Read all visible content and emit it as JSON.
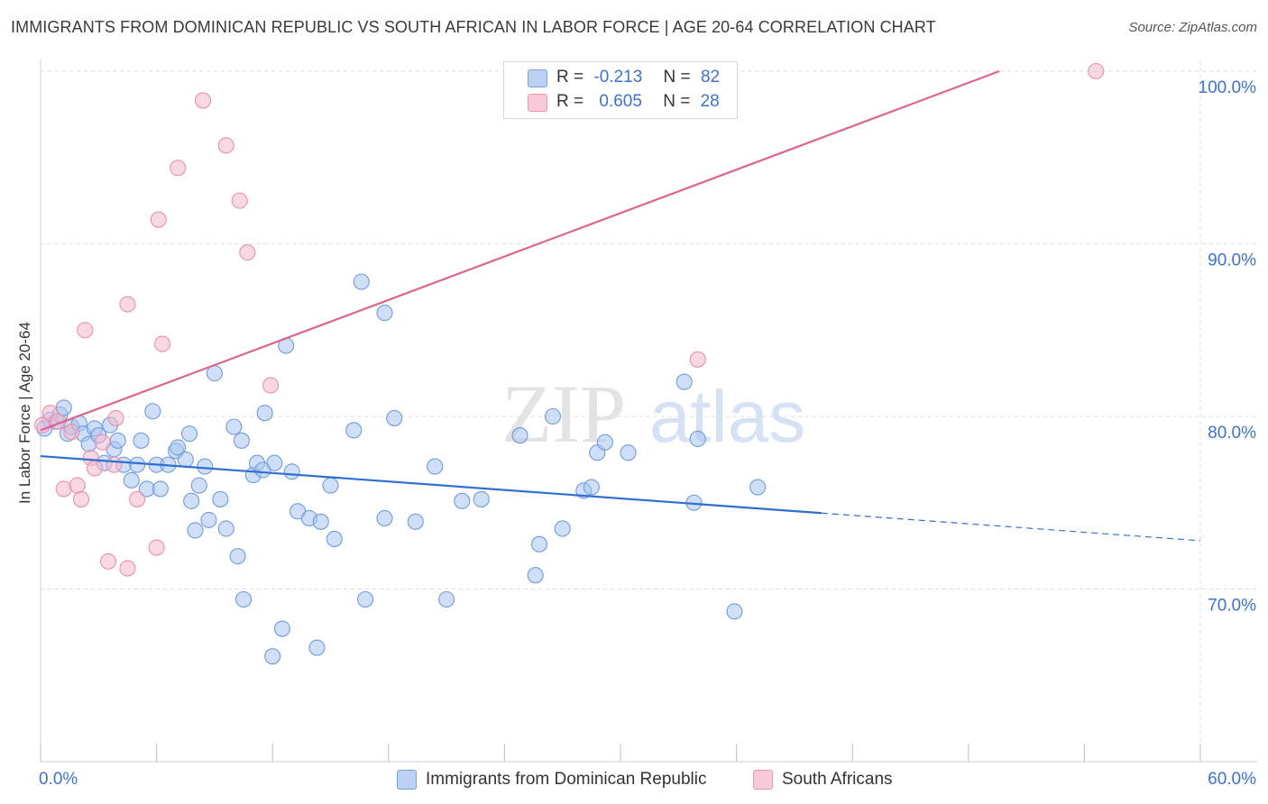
{
  "title": "IMMIGRANTS FROM DOMINICAN REPUBLIC VS SOUTH AFRICAN IN LABOR FORCE | AGE 20-64 CORRELATION CHART",
  "source": "Source: ZipAtlas.com",
  "watermark": {
    "zip": "ZIP",
    "atlas": "atlas"
  },
  "legend_top": {
    "rows": [
      {
        "r_label": "R =",
        "r_value": "-0.213",
        "n_label": "N =",
        "n_value": "82"
      },
      {
        "r_label": "R =",
        "r_value": "0.605",
        "n_label": "N =",
        "n_value": "28"
      }
    ]
  },
  "colors": {
    "blue_fill": "#a8c4f0",
    "blue_stroke": "#6f9be0",
    "blue_line": "#2f6fd0",
    "pink_fill": "#f5b8cb",
    "pink_stroke": "#ea8fae",
    "pink_line": "#e0628f",
    "grid": "#dddddd",
    "tick_text": "#3b72d9"
  },
  "chart_data": {
    "type": "scatter",
    "title": "IMMIGRANTS FROM DOMINICAN REPUBLIC VS SOUTH AFRICAN IN LABOR FORCE | AGE 20-64 CORRELATION CHART",
    "xlabel": "",
    "ylabel": "In Labor Force | Age 20-64",
    "xlim": [
      0,
      60
    ],
    "ylim": [
      60,
      100
    ],
    "x_tick_labels": [
      "0.0%",
      "60.0%"
    ],
    "y_ticks": [
      70,
      80,
      90,
      100
    ],
    "y_tick_labels": [
      "70.0%",
      "80.0%",
      "90.0%",
      "100.0%"
    ],
    "grid": true,
    "legend_position": "bottom",
    "series": [
      {
        "name": "Immigrants from Dominican Republic",
        "color": "#a8c4f0",
        "points": [
          [
            0.2,
            79.3
          ],
          [
            0.5,
            79.8
          ],
          [
            0.8,
            79.7
          ],
          [
            1.0,
            80.1
          ],
          [
            1.2,
            80.5
          ],
          [
            1.4,
            79.0
          ],
          [
            1.6,
            79.4
          ],
          [
            2.0,
            79.6
          ],
          [
            2.2,
            79.0
          ],
          [
            2.5,
            78.4
          ],
          [
            2.8,
            79.3
          ],
          [
            3.0,
            78.9
          ],
          [
            3.3,
            77.3
          ],
          [
            3.6,
            79.5
          ],
          [
            3.8,
            78.1
          ],
          [
            4.0,
            78.6
          ],
          [
            4.3,
            77.2
          ],
          [
            4.7,
            76.3
          ],
          [
            5.0,
            77.2
          ],
          [
            5.2,
            78.6
          ],
          [
            5.5,
            75.8
          ],
          [
            5.8,
            80.3
          ],
          [
            6.0,
            77.2
          ],
          [
            6.2,
            75.8
          ],
          [
            6.6,
            77.2
          ],
          [
            7.0,
            78.0
          ],
          [
            7.1,
            78.2
          ],
          [
            7.5,
            77.5
          ],
          [
            7.7,
            79.0
          ],
          [
            7.8,
            75.1
          ],
          [
            8.0,
            73.4
          ],
          [
            8.2,
            76.0
          ],
          [
            8.5,
            77.1
          ],
          [
            8.7,
            74.0
          ],
          [
            9.0,
            82.5
          ],
          [
            9.3,
            75.2
          ],
          [
            9.6,
            73.5
          ],
          [
            10.0,
            79.4
          ],
          [
            10.2,
            71.9
          ],
          [
            10.4,
            78.6
          ],
          [
            10.5,
            69.4
          ],
          [
            11.0,
            76.6
          ],
          [
            11.2,
            77.3
          ],
          [
            11.5,
            76.9
          ],
          [
            11.6,
            80.2
          ],
          [
            12.0,
            66.1
          ],
          [
            12.1,
            77.3
          ],
          [
            12.5,
            67.7
          ],
          [
            12.7,
            84.1
          ],
          [
            13.0,
            76.8
          ],
          [
            13.3,
            74.5
          ],
          [
            13.9,
            74.1
          ],
          [
            14.3,
            66.6
          ],
          [
            14.5,
            73.9
          ],
          [
            15.0,
            76.0
          ],
          [
            15.2,
            72.9
          ],
          [
            16.2,
            79.2
          ],
          [
            16.6,
            87.8
          ],
          [
            16.8,
            69.4
          ],
          [
            17.8,
            86.0
          ],
          [
            17.8,
            74.1
          ],
          [
            18.3,
            79.9
          ],
          [
            19.4,
            73.9
          ],
          [
            20.4,
            77.1
          ],
          [
            21.0,
            69.4
          ],
          [
            21.8,
            75.1
          ],
          [
            22.8,
            75.2
          ],
          [
            24.8,
            78.9
          ],
          [
            25.6,
            70.8
          ],
          [
            25.8,
            72.6
          ],
          [
            26.5,
            80.0
          ],
          [
            27.0,
            73.5
          ],
          [
            28.1,
            75.7
          ],
          [
            28.5,
            75.9
          ],
          [
            28.8,
            77.9
          ],
          [
            29.2,
            78.5
          ],
          [
            30.4,
            77.9
          ],
          [
            33.3,
            82.0
          ],
          [
            33.8,
            75.0
          ],
          [
            34.0,
            78.7
          ],
          [
            35.9,
            68.7
          ],
          [
            37.1,
            75.9
          ]
        ]
      },
      {
        "name": "South Africans",
        "color": "#f5b8cb",
        "points": [
          [
            0.1,
            79.5
          ],
          [
            0.5,
            80.2
          ],
          [
            0.9,
            79.7
          ],
          [
            1.2,
            75.8
          ],
          [
            1.6,
            79.1
          ],
          [
            1.9,
            76.0
          ],
          [
            2.1,
            75.2
          ],
          [
            2.3,
            85.0
          ],
          [
            2.6,
            77.6
          ],
          [
            2.8,
            77.0
          ],
          [
            3.2,
            78.5
          ],
          [
            3.5,
            71.6
          ],
          [
            3.8,
            77.2
          ],
          [
            3.9,
            79.9
          ],
          [
            4.5,
            71.2
          ],
          [
            4.5,
            86.5
          ],
          [
            5.0,
            75.2
          ],
          [
            6.0,
            72.4
          ],
          [
            6.1,
            91.4
          ],
          [
            6.3,
            84.2
          ],
          [
            7.1,
            94.4
          ],
          [
            8.4,
            98.3
          ],
          [
            9.6,
            95.7
          ],
          [
            10.3,
            92.5
          ],
          [
            10.7,
            89.5
          ],
          [
            11.9,
            81.8
          ],
          [
            34.0,
            83.3
          ],
          [
            54.6,
            100.0
          ]
        ]
      }
    ],
    "trend_lines": [
      {
        "series": "Immigrants from Dominican Republic",
        "from": [
          0,
          77.7
        ],
        "to": [
          40.4,
          74.4
        ],
        "dashed_to": [
          60,
          72.8
        ]
      },
      {
        "series": "South Africans",
        "from": [
          0,
          79.2
        ],
        "to": [
          49.6,
          100.0
        ]
      }
    ]
  },
  "legend_bottom": {
    "items": [
      {
        "label": "Immigrants from Dominican Republic"
      },
      {
        "label": "South Africans"
      }
    ]
  }
}
